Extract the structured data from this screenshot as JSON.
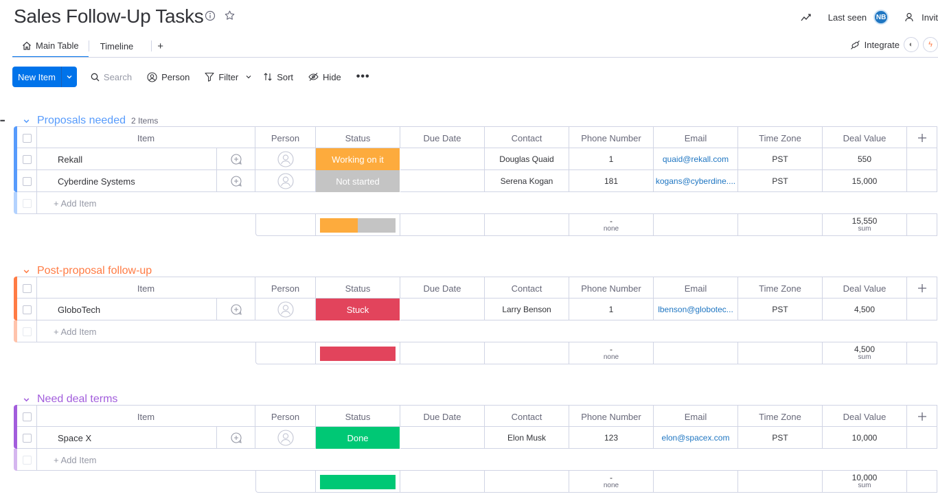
{
  "header": {
    "title": "Sales Follow-Up Tasks",
    "last_seen": "Last seen",
    "avatar_initials": "NB",
    "invite": "Invit"
  },
  "tabs": [
    {
      "label": "Main Table",
      "active": true
    },
    {
      "label": "Timeline",
      "active": false
    }
  ],
  "tabs_add": "+",
  "integrate": "Integrate",
  "toolbar": {
    "new_item": "New Item",
    "search": "Search",
    "person": "Person",
    "filter": "Filter",
    "sort": "Sort",
    "hide": "Hide"
  },
  "columns": [
    "Item",
    "Person",
    "Status",
    "Due Date",
    "Contact",
    "Phone Number",
    "Email",
    "Time Zone",
    "Deal Value"
  ],
  "add_item": "+ Add Item",
  "colors": {
    "blue": "#579bfc",
    "orange": "#ff7b44",
    "purple": "#a25ddc",
    "working": "#fdab3d",
    "not_started": "#c4c4c4",
    "stuck": "#e2445c",
    "done": "#00c875"
  },
  "groups": [
    {
      "title": "Proposals needed",
      "count": "2 Items",
      "color": "#579bfc",
      "rows": [
        {
          "item": "Rekall",
          "status": "Working on it",
          "status_color": "#fdab3d",
          "contact": "Douglas Quaid",
          "phone": "1",
          "email": "quaid@rekall.com",
          "tz": "PST",
          "deal": "550"
        },
        {
          "item": "Cyberdine Systems",
          "status": "Not started",
          "status_color": "#c4c4c4",
          "contact": "Serena Kogan",
          "phone": "181",
          "email": "kogans@cyberdine....",
          "tz": "PST",
          "deal": "15,000"
        }
      ],
      "summary": {
        "phone_value": "-",
        "phone_sub": "none",
        "deal_value": "15,550",
        "deal_sub": "sum"
      }
    },
    {
      "title": "Post-proposal follow-up",
      "count": "",
      "color": "#ff7b44",
      "rows": [
        {
          "item": "GloboTech",
          "status": "Stuck",
          "status_color": "#e2445c",
          "contact": "Larry Benson",
          "phone": "1",
          "email": "lbenson@globotec...",
          "tz": "PST",
          "deal": "4,500"
        }
      ],
      "summary": {
        "phone_value": "-",
        "phone_sub": "none",
        "deal_value": "4,500",
        "deal_sub": "sum"
      }
    },
    {
      "title": "Need deal terms",
      "count": "",
      "color": "#a25ddc",
      "rows": [
        {
          "item": "Space X",
          "status": "Done",
          "status_color": "#00c875",
          "contact": "Elon Musk",
          "phone": "123",
          "email": "elon@spacex.com",
          "tz": "PST",
          "deal": "10,000"
        }
      ],
      "summary": {
        "phone_value": "-",
        "phone_sub": "none",
        "deal_value": "10,000",
        "deal_sub": "sum"
      }
    }
  ]
}
